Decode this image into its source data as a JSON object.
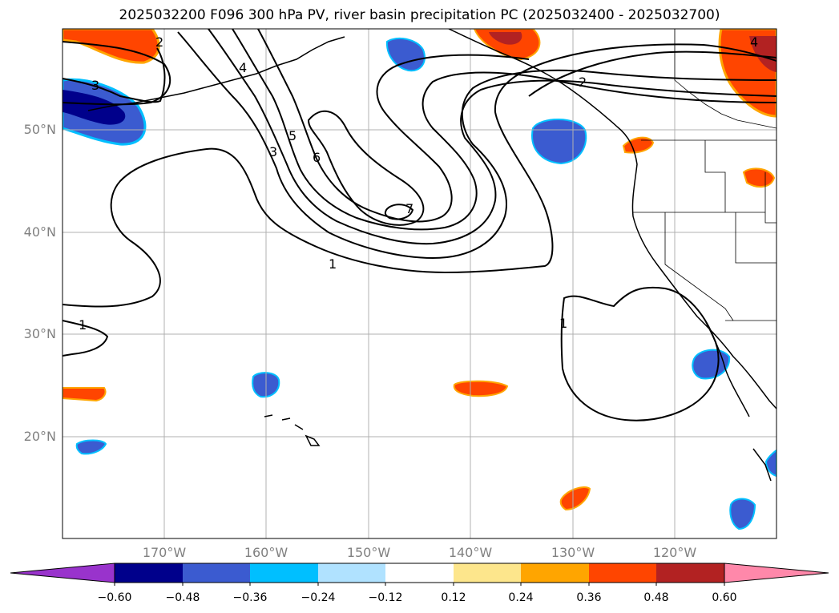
{
  "title": "2025032200 F096 300 hPa PV, river basin precipitation PC (2025032400 - 2025032700)",
  "map": {
    "lat_labels": [
      "50°N",
      "40°N",
      "30°N",
      "20°N"
    ],
    "lon_labels": [
      "170°W",
      "160°W",
      "150°W",
      "140°W",
      "130°W",
      "120°W"
    ],
    "extent": {
      "lon_min": -180,
      "lon_max": -110,
      "lat_min": 10,
      "lat_max": 60
    },
    "contour_labels": [
      "1",
      "1",
      "1",
      "2",
      "2",
      "3",
      "3",
      "4",
      "4",
      "5",
      "6",
      "7"
    ],
    "contour_levels": [
      1,
      2,
      3,
      4,
      5,
      6,
      7
    ]
  },
  "colorbar": {
    "ticks": [
      "−0.60",
      "−0.48",
      "−0.36",
      "−0.24",
      "−0.12",
      "0.12",
      "0.24",
      "0.36",
      "0.48",
      "0.60"
    ],
    "colors": [
      "#9933cc",
      "#00008b",
      "#3b5bd0",
      "#00bfff",
      "#b0e2ff",
      "#ffffff",
      "#fde68c",
      "#ffa500",
      "#ff4500",
      "#b22222",
      "#ff88aa"
    ],
    "extend": "both"
  }
}
